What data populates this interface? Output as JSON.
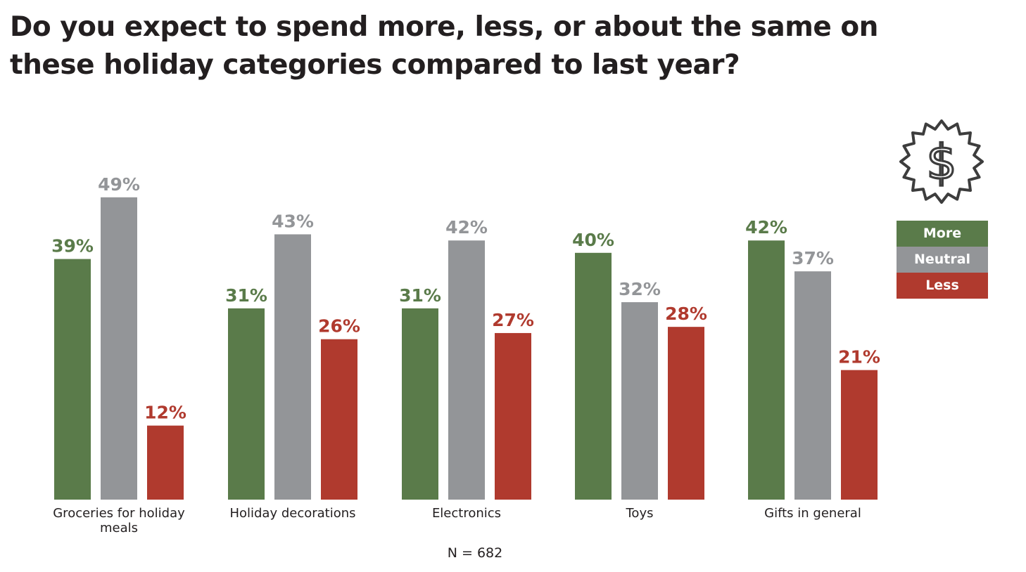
{
  "title": "Do you expect to spend more, less, or about the same on these holiday categories compared to last year?",
  "icon": "dollar-badge-icon",
  "footnote": "N = 682",
  "colors": {
    "more": "#5a7b4a",
    "neutral": "#939598",
    "less": "#b03a2e"
  },
  "chart_data": {
    "type": "bar",
    "categories": [
      [
        "Groceries for holiday",
        "meals"
      ],
      [
        "Holiday decorations"
      ],
      [
        "Electronics"
      ],
      [
        "Toys"
      ],
      [
        "Gifts in general"
      ]
    ],
    "series": [
      {
        "name": "More",
        "values": [
          39,
          31,
          31,
          40,
          42
        ]
      },
      {
        "name": "Neutral",
        "values": [
          49,
          43,
          42,
          32,
          37
        ]
      },
      {
        "name": "Less",
        "values": [
          12,
          26,
          27,
          28,
          21
        ]
      }
    ],
    "value_suffix": "%",
    "ylim": [
      0,
      49
    ],
    "legend_position": "right",
    "grid": false
  }
}
